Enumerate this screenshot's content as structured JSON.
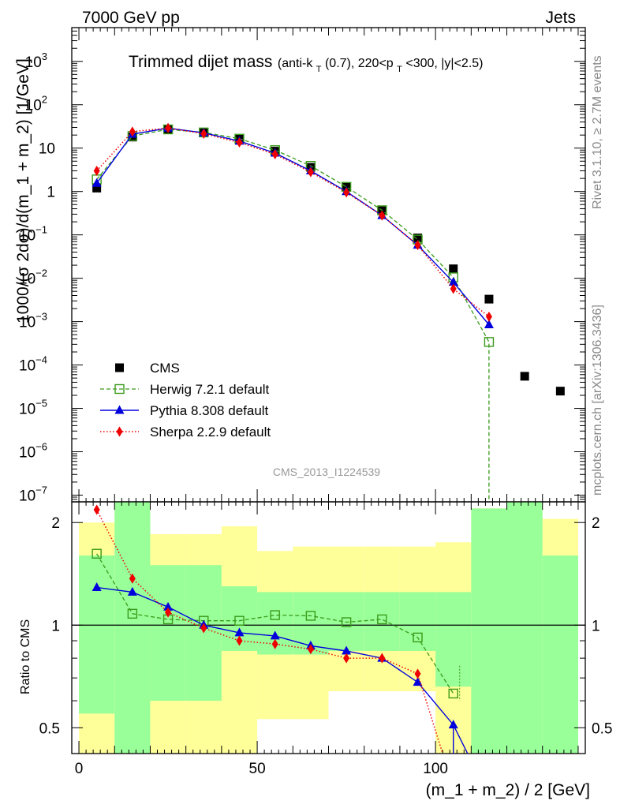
{
  "header": {
    "left": "7000 GeV pp",
    "right": "Jets"
  },
  "side_text": {
    "rivet": "Rivet 3.1.10, ≥ 2.7M events",
    "source": "mcplots.cern.ch [arXiv:1306.3436]"
  },
  "watermark": "CMS_2013_I1224539",
  "title": {
    "main": "Trimmed dijet mass",
    "sub_pre": "(anti-k",
    "sub_T1": "T",
    "sub_mid": "(0.7), 220<p",
    "sub_T2": "T",
    "sub_post": "<300, |y|<2.5)"
  },
  "colors": {
    "cms": "#000000",
    "herwig": "#3a9a1a",
    "pythia": "#0000dd",
    "sherpa": "#ee0000",
    "band_inner": "#99ff99",
    "band_outer": "#ffff99"
  },
  "chart_data": [
    {
      "type": "scatter",
      "name": "main",
      "xlabel": "(m_1 + m_2) / 2 [GeV]",
      "ylabel": "1000/(σ 2dσ)/d(m_1 + m_2) [1/GeV]",
      "xlim": [
        -2,
        142
      ],
      "ylim": [
        7e-08,
        6000
      ],
      "log_y": true,
      "y_ticks": [
        {
          "v": 1e-07,
          "base": "10",
          "exp": "−7"
        },
        {
          "v": 1e-06,
          "base": "10",
          "exp": "−6"
        },
        {
          "v": 1e-05,
          "base": "10",
          "exp": "−5"
        },
        {
          "v": 0.0001,
          "base": "10",
          "exp": "−4"
        },
        {
          "v": 0.001,
          "base": "10",
          "exp": "−3"
        },
        {
          "v": 0.01,
          "base": "10",
          "exp": "−2"
        },
        {
          "v": 0.1,
          "base": "10",
          "exp": "−1"
        },
        {
          "v": 1,
          "base": "1",
          "exp": ""
        },
        {
          "v": 10,
          "base": "10",
          "exp": ""
        },
        {
          "v": 100,
          "base": "10",
          "exp": "2"
        },
        {
          "v": 1000,
          "base": "10",
          "exp": "3"
        }
      ],
      "legend": [
        {
          "key": "cms",
          "label": "CMS"
        },
        {
          "key": "herwig",
          "label": "Herwig 7.2.1 default"
        },
        {
          "key": "pythia",
          "label": "Pythia 8.308 default"
        },
        {
          "key": "sherpa",
          "label": "Sherpa 2.2.9 default"
        }
      ],
      "legend_position": "lower-left",
      "series": [
        {
          "key": "cms",
          "x": [
            5,
            15,
            25,
            35,
            45,
            55,
            65,
            75,
            85,
            95,
            105,
            115,
            125,
            135
          ],
          "y": [
            1.2,
            18,
            27,
            23,
            16,
            8.5,
            3.6,
            1.25,
            0.36,
            0.085,
            0.0165,
            0.0033,
            5.5e-05,
            2.5e-05
          ]
        },
        {
          "key": "herwig",
          "x": [
            5,
            15,
            25,
            35,
            45,
            55,
            65,
            75,
            85,
            95,
            105,
            115
          ],
          "y": [
            1.9,
            19,
            27,
            23,
            16.5,
            9,
            3.9,
            1.28,
            0.37,
            0.078,
            0.0105,
            0.00034
          ]
        },
        {
          "key": "pythia",
          "x": [
            5,
            15,
            25,
            35,
            45,
            55,
            65,
            75,
            85,
            95,
            105,
            115
          ],
          "y": [
            1.55,
            21,
            29,
            22.5,
            14.5,
            7.7,
            3.0,
            1.0,
            0.28,
            0.058,
            0.0081,
            0.00085
          ]
        },
        {
          "key": "sherpa",
          "x": [
            5,
            15,
            25,
            35,
            45,
            55,
            65,
            75,
            85,
            95,
            105,
            115
          ],
          "y": [
            3.0,
            24,
            29,
            21.5,
            13.5,
            7.2,
            2.8,
            0.95,
            0.28,
            0.058,
            0.0057,
            0.0013
          ]
        }
      ]
    },
    {
      "type": "scatter",
      "name": "ratio",
      "xlabel": "(m_1 + m_2) / 2 [GeV]",
      "ylabel": "Ratio to CMS",
      "xlim": [
        -2,
        142
      ],
      "ylim": [
        0.42,
        2.3
      ],
      "log_y": true,
      "y_ticks": [
        {
          "v": 0.5,
          "label": "0.5"
        },
        {
          "v": 1,
          "label": "1"
        },
        {
          "v": 2,
          "label": "2"
        }
      ],
      "x_ticks": [
        {
          "v": 0,
          "label": "0"
        },
        {
          "v": 50,
          "label": "50"
        },
        {
          "v": 100,
          "label": "100"
        }
      ],
      "bands": [
        {
          "x0": 0,
          "x1": 10,
          "inner": [
            0.55,
            1.6
          ],
          "outer": [
            0.3,
            2.0
          ]
        },
        {
          "x0": 10,
          "x1": 20,
          "inner": [
            0.3,
            3.0
          ],
          "outer": [
            0.3,
            3.0
          ]
        },
        {
          "x0": 20,
          "x1": 30,
          "inner": [
            0.6,
            1.5
          ],
          "outer": [
            0.3,
            1.85
          ]
        },
        {
          "x0": 30,
          "x1": 40,
          "inner": [
            0.6,
            1.5
          ],
          "outer": [
            0.3,
            1.85
          ]
        },
        {
          "x0": 40,
          "x1": 50,
          "inner": [
            0.84,
            1.3
          ],
          "outer": [
            0.42,
            1.95
          ]
        },
        {
          "x0": 50,
          "x1": 60,
          "inner": [
            0.82,
            1.25
          ],
          "outer": [
            0.53,
            1.65
          ]
        },
        {
          "x0": 60,
          "x1": 70,
          "inner": [
            0.82,
            1.25
          ],
          "outer": [
            0.53,
            1.7
          ]
        },
        {
          "x0": 70,
          "x1": 80,
          "inner": [
            0.84,
            1.25
          ],
          "outer": [
            0.64,
            1.7
          ]
        },
        {
          "x0": 80,
          "x1": 90,
          "inner": [
            0.84,
            1.25
          ],
          "outer": [
            0.64,
            1.7
          ]
        },
        {
          "x0": 90,
          "x1": 100,
          "inner": [
            0.84,
            1.25
          ],
          "outer": [
            0.64,
            1.7
          ]
        },
        {
          "x0": 100,
          "x1": 110,
          "inner": [
            0.66,
            1.25
          ],
          "outer": [
            0.3,
            1.75
          ]
        },
        {
          "x0": 110,
          "x1": 120,
          "inner": [
            0.3,
            2.2
          ],
          "outer": [
            0.3,
            2.2
          ]
        },
        {
          "x0": 120,
          "x1": 130,
          "inner": [
            0.3,
            3.0
          ],
          "outer": [
            0.3,
            3.0
          ]
        },
        {
          "x0": 130,
          "x1": 140,
          "inner": [
            0.3,
            1.6
          ],
          "outer": [
            0.3,
            2.05
          ]
        }
      ],
      "series": [
        {
          "key": "herwig",
          "x": [
            5,
            15,
            25,
            35,
            45,
            55,
            65,
            75,
            85,
            95,
            105
          ],
          "y": [
            1.62,
            1.08,
            1.04,
            1.03,
            1.03,
            1.07,
            1.065,
            1.02,
            1.04,
            0.92,
            0.63
          ]
        },
        {
          "key": "pythia",
          "x": [
            5,
            15,
            25,
            35,
            45,
            55,
            65,
            75,
            85,
            95,
            105
          ],
          "y": [
            1.29,
            1.25,
            1.13,
            1.0,
            0.95,
            0.93,
            0.87,
            0.84,
            0.8,
            0.68,
            0.51
          ]
        },
        {
          "key": "sherpa",
          "x": [
            5,
            15,
            25,
            35,
            45,
            55,
            65,
            75,
            85,
            95
          ],
          "y": [
            2.18,
            1.37,
            1.09,
            0.98,
            0.9,
            0.88,
            0.85,
            0.8,
            0.8,
            0.72
          ]
        }
      ]
    }
  ]
}
